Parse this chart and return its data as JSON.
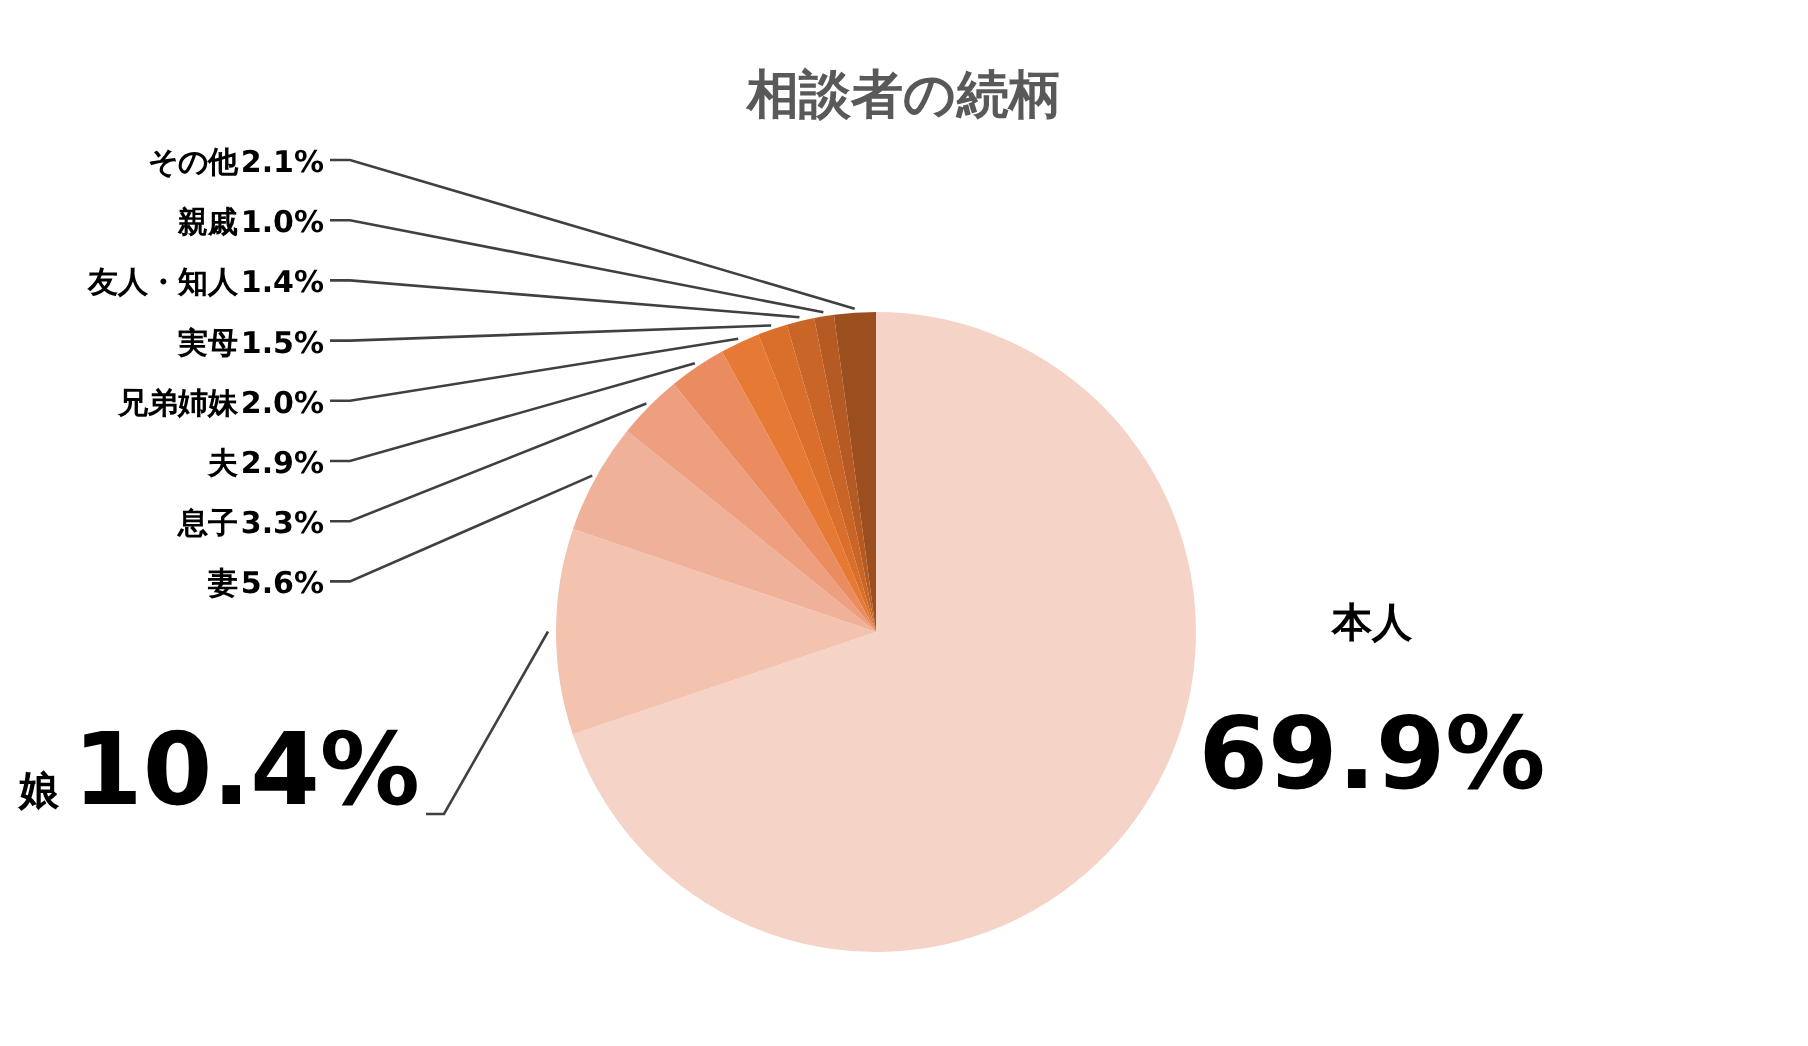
{
  "chart_data": {
    "type": "pie",
    "title": "相談者の続柄",
    "categories": [
      "本人",
      "娘",
      "妻",
      "息子",
      "夫",
      "兄弟姉妹",
      "実母",
      "友人・知人",
      "親戚",
      "その他"
    ],
    "values": [
      69.9,
      10.4,
      5.6,
      3.3,
      2.9,
      2.0,
      1.5,
      1.4,
      1.0,
      2.1
    ],
    "value_labels": [
      "69.9%",
      "10.4%",
      "5.6%",
      "3.3%",
      "2.9%",
      "2.0%",
      "1.5%",
      "1.4%",
      "1.0%",
      "2.1%"
    ],
    "colors": [
      "#f5d3c7",
      "#f3c3b0",
      "#f0b199",
      "#ee9f80",
      "#ea8c60",
      "#e67a35",
      "#d96f2a",
      "#c96527",
      "#b55a22",
      "#9c4f1e"
    ]
  }
}
